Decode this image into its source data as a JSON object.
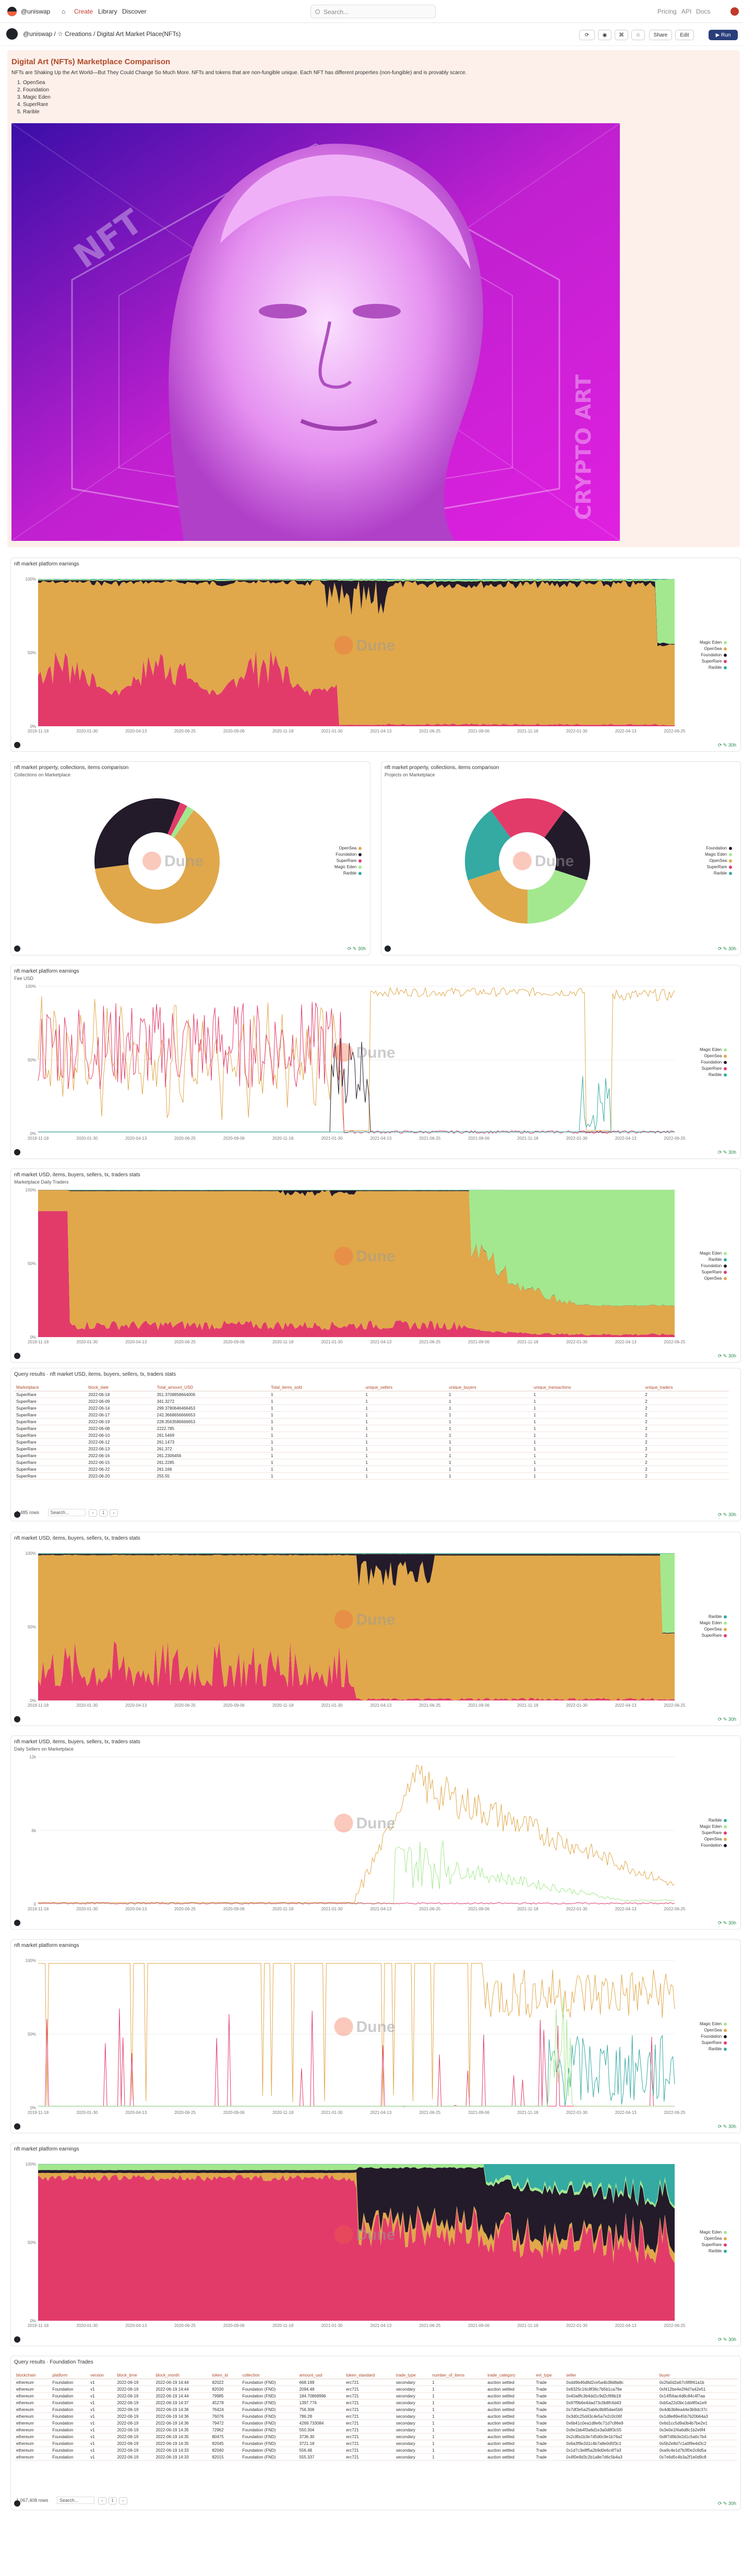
{
  "topbar": {
    "workspace": "@uniswap",
    "nav": [
      "⌂",
      "Create",
      "Library",
      "Discover"
    ],
    "search_placeholder": "Search...",
    "links": [
      "Pricing",
      "API",
      "Docs"
    ]
  },
  "header": {
    "path": "@uniswap / ☆ Creations / Digital Art Market Place(NFTs)",
    "buttons": [
      "Share",
      "Edit"
    ],
    "run": "Run"
  },
  "textcard": {
    "title": "Digital Art (NFTs) Marketplace Comparison",
    "intro": "NFTs are Shaking Up the Art World—But They Could Change So Much More. NFTs and tokens that are non-fungible unique. Each NFT has different properties (non-fungible) and is provably scarce.",
    "list": [
      "OpenSea",
      "Foundation",
      "Magic Eden",
      "SuperRare",
      "Rarible"
    ],
    "image_words": [
      "NFT",
      "CRYPTO ART"
    ]
  },
  "colors": {
    "pink": "#e23b6a",
    "gold": "#e0a84a",
    "dark": "#231a2a",
    "teal": "#34aaa2",
    "green": "#a3e88e",
    "magenta": "#c020d0",
    "violet": "#3a0ea8"
  },
  "charts": [
    {
      "title": "nft market platform earnings",
      "subtitle": "",
      "legend": [
        "Magic Eden",
        "OpenSea",
        "Foundation",
        "SuperRare",
        "Rarible"
      ]
    },
    {
      "title": "nft market property, collections, items comparison",
      "subtitle": "Collections on Marketplace",
      "legend": [
        "OpenSea",
        "Foundation",
        "SuperRare",
        "Magic Eden",
        "Rarible"
      ]
    },
    {
      "title": "nft market property, collections, items comparison",
      "subtitle": "Projects on Marketplace",
      "legend": [
        "Foundation",
        "Magic Eden",
        "OpenSea",
        "SuperRare",
        "Rarible"
      ]
    },
    {
      "title": "nft market platform earnings",
      "subtitle": "Fee USD",
      "legend": [
        "Magic Eden",
        "OpenSea",
        "Foundation",
        "SuperRare",
        "Rarible"
      ]
    },
    {
      "title": "nft market USD, items, buyers, sellers, tx, traders stats",
      "subtitle": "Marketplace Daily Traders",
      "legend": [
        "Magic Eden",
        "Rarible",
        "Foundation",
        "SuperRare",
        "OpenSea"
      ]
    },
    {
      "title": "nft market USD, items, buyers, sellers, tx, traders stats",
      "subtitle": "",
      "legend": [
        "Rarible",
        "Magic Eden",
        "OpenSea",
        "SuperRare"
      ]
    },
    {
      "title": "nft market USD, items, buyers, sellers, tx, traders stats",
      "subtitle": "Daily Sellers on Marketplace",
      "legend": [
        "Rarible",
        "Magic Eden",
        "SuperRare",
        "OpenSea",
        "Foundation"
      ]
    },
    {
      "title": "nft market platform earnings",
      "subtitle": "",
      "legend": [
        "Magic Eden",
        "OpenSea",
        "Foundation",
        "SuperRare",
        "Rarible"
      ]
    },
    {
      "title": "nft market platform earnings",
      "subtitle": "",
      "legend": [
        "Magic Eden",
        "OpenSea",
        "SuperRare",
        "Rarible"
      ]
    }
  ],
  "x_ticks": [
    "2019-11-18",
    "2020-01-30",
    "2020-04-13",
    "2020-06-25",
    "2020-09-06",
    "2020-11-18",
    "2021-01-30",
    "2021-04-13",
    "2021-06-25",
    "2021-09-06",
    "2021-11-18",
    "2022-01-30",
    "2022-04-13",
    "2022-06-25"
  ],
  "pct_ticks": [
    "100%",
    "50%",
    "0%"
  ],
  "seller_ticks": [
    "12k",
    "6k",
    "0"
  ],
  "table1": {
    "title": "Query results · nft market USD, items, buyers, sellers, tx, traders stats",
    "columns": [
      "Marketplace",
      "block_date",
      "Total_amount_USD",
      "Total_items_sold",
      "unique_sellers",
      "unique_buyers",
      "unique_transactions",
      "unique_traders"
    ],
    "rows": [
      [
        "SuperRare",
        "2022-06-18",
        "351.3708858664006",
        "1",
        "1",
        "1",
        "1",
        "2"
      ],
      [
        "SuperRare",
        "2022-06-09",
        "341.3272",
        "1",
        "1",
        "1",
        "1",
        "2"
      ],
      [
        "SuperRare",
        "2022-06-14",
        "299.3780646466453",
        "1",
        "1",
        "1",
        "1",
        "2"
      ],
      [
        "SuperRare",
        "2022-06-17",
        "242.3668656666653",
        "1",
        "1",
        "1",
        "1",
        "2"
      ],
      [
        "SuperRare",
        "2022-06-19",
        "228.3563586666653",
        "1",
        "1",
        "1",
        "1",
        "2"
      ],
      [
        "SuperRare",
        "2022-06-08",
        "2222.785",
        "1",
        "1",
        "1",
        "1",
        "2"
      ],
      [
        "SuperRare",
        "2022-06-10",
        "261.5469",
        "1",
        "1",
        "1",
        "1",
        "2"
      ],
      [
        "SuperRare",
        "2022-06-12",
        "261.1473",
        "1",
        "1",
        "1",
        "1",
        "2"
      ],
      [
        "SuperRare",
        "2022-06-13",
        "261.372",
        "1",
        "1",
        "1",
        "1",
        "2"
      ],
      [
        "SuperRare",
        "2022-06-16",
        "261.2306456",
        "1",
        "1",
        "1",
        "1",
        "2"
      ],
      [
        "SuperRare",
        "2022-06-15",
        "261.2285",
        "1",
        "1",
        "1",
        "1",
        "2"
      ],
      [
        "SuperRare",
        "2022-06-22",
        "261.166",
        "1",
        "1",
        "1",
        "1",
        "2"
      ],
      [
        "SuperRare",
        "2022-06-20",
        "255.55",
        "1",
        "1",
        "1",
        "1",
        "2"
      ]
    ],
    "rows_label": "1,485 rows",
    "search": "Search..."
  },
  "table2": {
    "title": "Query results · Foundation Trades",
    "columns": [
      "blockchain",
      "platform",
      "version",
      "block_time",
      "block_month",
      "token_id",
      "collection",
      "amount_usd",
      "token_standard",
      "trade_type",
      "number_of_items",
      "trade_category",
      "evt_type",
      "seller",
      "buyer"
    ],
    "rows": [
      [
        "ethereum",
        "Foundation",
        "v1",
        "2022-06-19",
        "2022-06-19 14:44",
        "82022",
        "Foundation (FND)",
        "668.199",
        "erc721",
        "secondary",
        "1",
        "auction settled",
        "Trade",
        "0xdd9b46d8d2ce5a4b38d8a8c",
        "0x2fa0d2a67c6f8f41a1b"
      ],
      [
        "ethereum",
        "Foundation",
        "v1",
        "2022-06-19",
        "2022-06-19 14:44",
        "82030",
        "Foundation (FND)",
        "2094.48",
        "erc721",
        "secondary",
        "1",
        "auction settled",
        "Trade",
        "0x8325c16c8f36c7b5b1ca76e",
        "0xf412be4e2f4d7a42e51"
      ],
      [
        "ethereum",
        "Foundation",
        "v1",
        "2022-06-19",
        "2022-06-19 14:44",
        "79985",
        "Foundation (FND)",
        "184.70868996",
        "erc721",
        "secondary",
        "1",
        "auction settled",
        "Trade",
        "0x40a8fc3b4dd1c9d2cf86b18",
        "0x14f56ac4d8c84c4f7aa"
      ],
      [
        "ethereum",
        "Foundation",
        "v1",
        "2022-06-19",
        "2022-06-19 14:37",
        "45278",
        "Foundation (FND)",
        "1397.776",
        "erc721",
        "secondary",
        "1",
        "auction settled",
        "Trade",
        "0x97f9b6e4dad73c0b8fc6d43",
        "0xb5a22d3bc1dd4f0a1e9"
      ],
      [
        "ethereum",
        "Foundation",
        "v1",
        "2022-06-19",
        "2022-06-19 14:36",
        "76424",
        "Foundation (FND)",
        "756.306",
        "erc721",
        "secondary",
        "1",
        "auction settled",
        "Trade",
        "0x7df3e5a25ab6c8b85dae5b6",
        "0x4db3b8ea44e3b9dc37c"
      ],
      [
        "ethereum",
        "Foundation",
        "v1",
        "2022-06-19",
        "2022-06-19 14:36",
        "76076",
        "Foundation (FND)",
        "786.28",
        "erc721",
        "secondary",
        "1",
        "auction settled",
        "Trade",
        "0x3d0c25d43c4e5a7e2c0c06f",
        "0x1d8e89e45b7b20b64a3"
      ],
      [
        "ethereum",
        "Foundation",
        "v1",
        "2022-06-19",
        "2022-06-19 14:36",
        "79472",
        "Foundation (FND)",
        "4269.733084",
        "erc721",
        "secondary",
        "1",
        "auction settled",
        "Trade",
        "0x6b41c0ea1d8e6c71d7c86e9",
        "0x6d1cc5d9a0b4b7be2e1"
      ],
      [
        "ethereum",
        "Foundation",
        "v1",
        "2022-06-19",
        "2022-06-19 14:35",
        "72962",
        "Foundation (FND)",
        "550.304",
        "erc721",
        "secondary",
        "1",
        "auction settled",
        "Trade",
        "0x9e1bb4f3a6d1e3a0d8f3c55",
        "0x3e0e1f4a6d8c1b2e9f4"
      ],
      [
        "ethereum",
        "Foundation",
        "v1",
        "2022-06-19",
        "2022-06-19 14:35",
        "80475",
        "Foundation (FND)",
        "3736.30",
        "erc721",
        "secondary",
        "1",
        "auction settled",
        "Trade",
        "0x2c8fa1b3e7d5d0c9e1b76a2",
        "0x8f7d9b3e2d1c5a0c7b4"
      ],
      [
        "ethereum",
        "Foundation",
        "v1",
        "2022-06-19",
        "2022-06-19 14:35",
        "82045",
        "Foundation (FND)",
        "3721.18",
        "erc721",
        "secondary",
        "1",
        "auction settled",
        "Trade",
        "0x6a3f9e2d1c4b7a8e0d5f3c1",
        "0x5b2e8d7c1a0f9e4d3c2"
      ],
      [
        "ethereum",
        "Foundation",
        "v1",
        "2022-06-19",
        "2022-06-19 14:33",
        "82040",
        "Foundation (FND)",
        "556.48",
        "erc721",
        "secondary",
        "1",
        "auction settled",
        "Trade",
        "0x1d7c3e8f5a2b9d0e6c4f7a3",
        "0xa9c4e1d7b3f0e2c8d5a"
      ],
      [
        "ethereum",
        "Foundation",
        "v1",
        "2022-06-19",
        "2022-06-19 14:33",
        "82015",
        "Foundation (FND)",
        "555.337",
        "erc721",
        "secondary",
        "1",
        "auction settled",
        "Trade",
        "0x4f0e9d3c2b1a8e7d6c5b4a3",
        "0x7e6d5c4b3a2f1e0d9c8"
      ]
    ],
    "rows_label": "1,067,408 rows",
    "search": "Search..."
  },
  "watermark": "Dune"
}
